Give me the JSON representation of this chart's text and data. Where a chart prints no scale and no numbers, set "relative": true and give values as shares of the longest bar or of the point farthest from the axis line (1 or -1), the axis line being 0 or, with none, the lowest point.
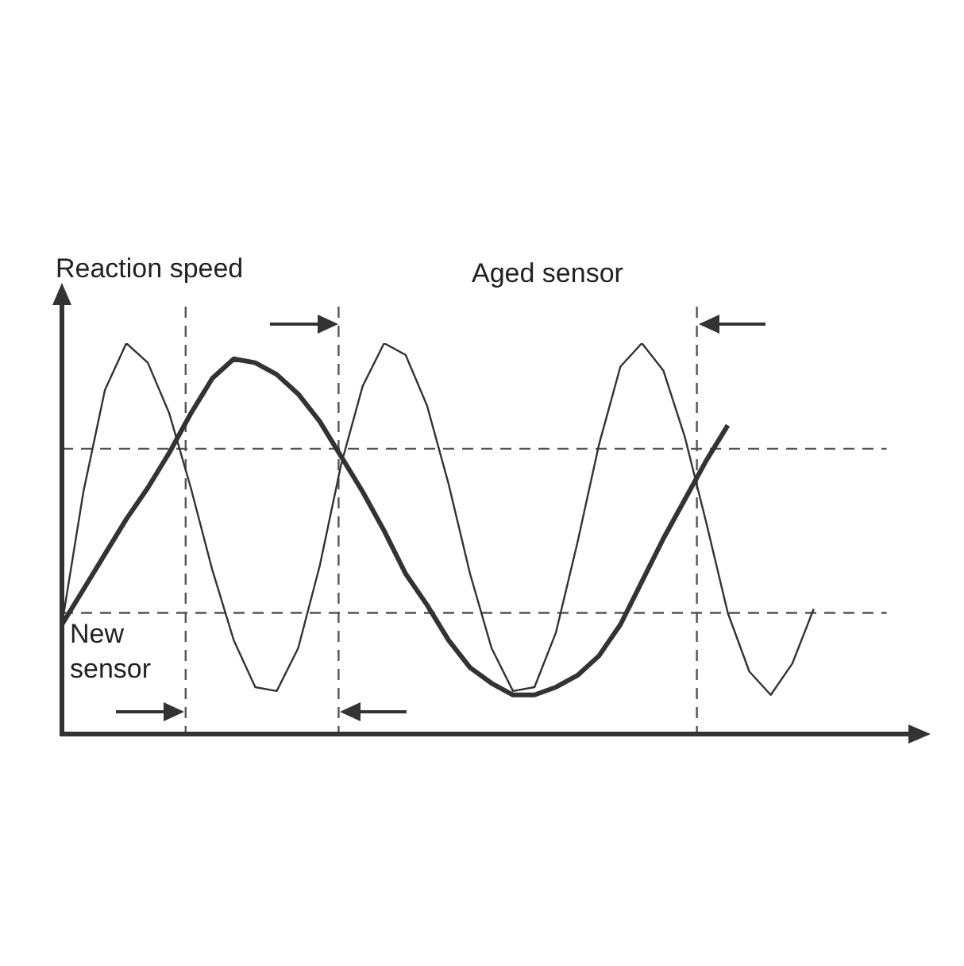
{
  "chart_data": {
    "type": "line",
    "relative": true,
    "ylabel": "Reaction speed",
    "annotations": [
      "Aged sensor",
      "New sensor"
    ],
    "categories": [
      null,
      null,
      null,
      null,
      null,
      null,
      null,
      null,
      null,
      null,
      null,
      null,
      null,
      null,
      null,
      null,
      null,
      null,
      null,
      null,
      null,
      null,
      null,
      null,
      null,
      null,
      null,
      null,
      null,
      null,
      null,
      null,
      null,
      null,
      null,
      null,
      null,
      null,
      null,
      null,
      null
    ],
    "tick_labels": false,
    "grid": false,
    "legend": false,
    "marker": "none",
    "line_style": "solid",
    "series": [
      {
        "color": "#333333",
        "values": [
          0.28,
          0.62,
          0.88,
          1.0,
          0.95,
          0.82,
          0.63,
          0.42,
          0.24,
          0.12,
          0.11,
          0.22,
          0.43,
          0.69,
          0.89,
          1.0,
          0.97,
          0.84,
          0.64,
          0.41,
          0.22,
          0.11,
          0.12,
          0.26,
          0.49,
          0.74,
          0.94,
          1.0,
          0.93,
          0.76,
          0.54,
          0.31,
          0.16,
          0.1,
          0.18,
          0.32,
          null,
          null,
          null,
          null,
          null
        ]
      },
      {
        "color": "#333333",
        "values": [
          0.28,
          0.37,
          0.46,
          0.55,
          0.63,
          0.72,
          0.82,
          0.91,
          0.96,
          0.95,
          0.92,
          0.87,
          0.8,
          0.71,
          0.62,
          0.52,
          0.41,
          0.33,
          0.24,
          0.17,
          0.13,
          0.1,
          0.1,
          0.12,
          0.15,
          0.2,
          0.28,
          0.39,
          0.5,
          0.6,
          0.7,
          0.79,
          null,
          null,
          null,
          null,
          null,
          null,
          null,
          null,
          null
        ]
      }
    ],
    "ref_lines": [
      {
        "axis": "y",
        "value": 0.73,
        "line_style": "dashed",
        "color": "#555555"
      },
      {
        "axis": "y",
        "value": 0.31,
        "line_style": "dashed",
        "color": "#555555"
      }
    ]
  }
}
